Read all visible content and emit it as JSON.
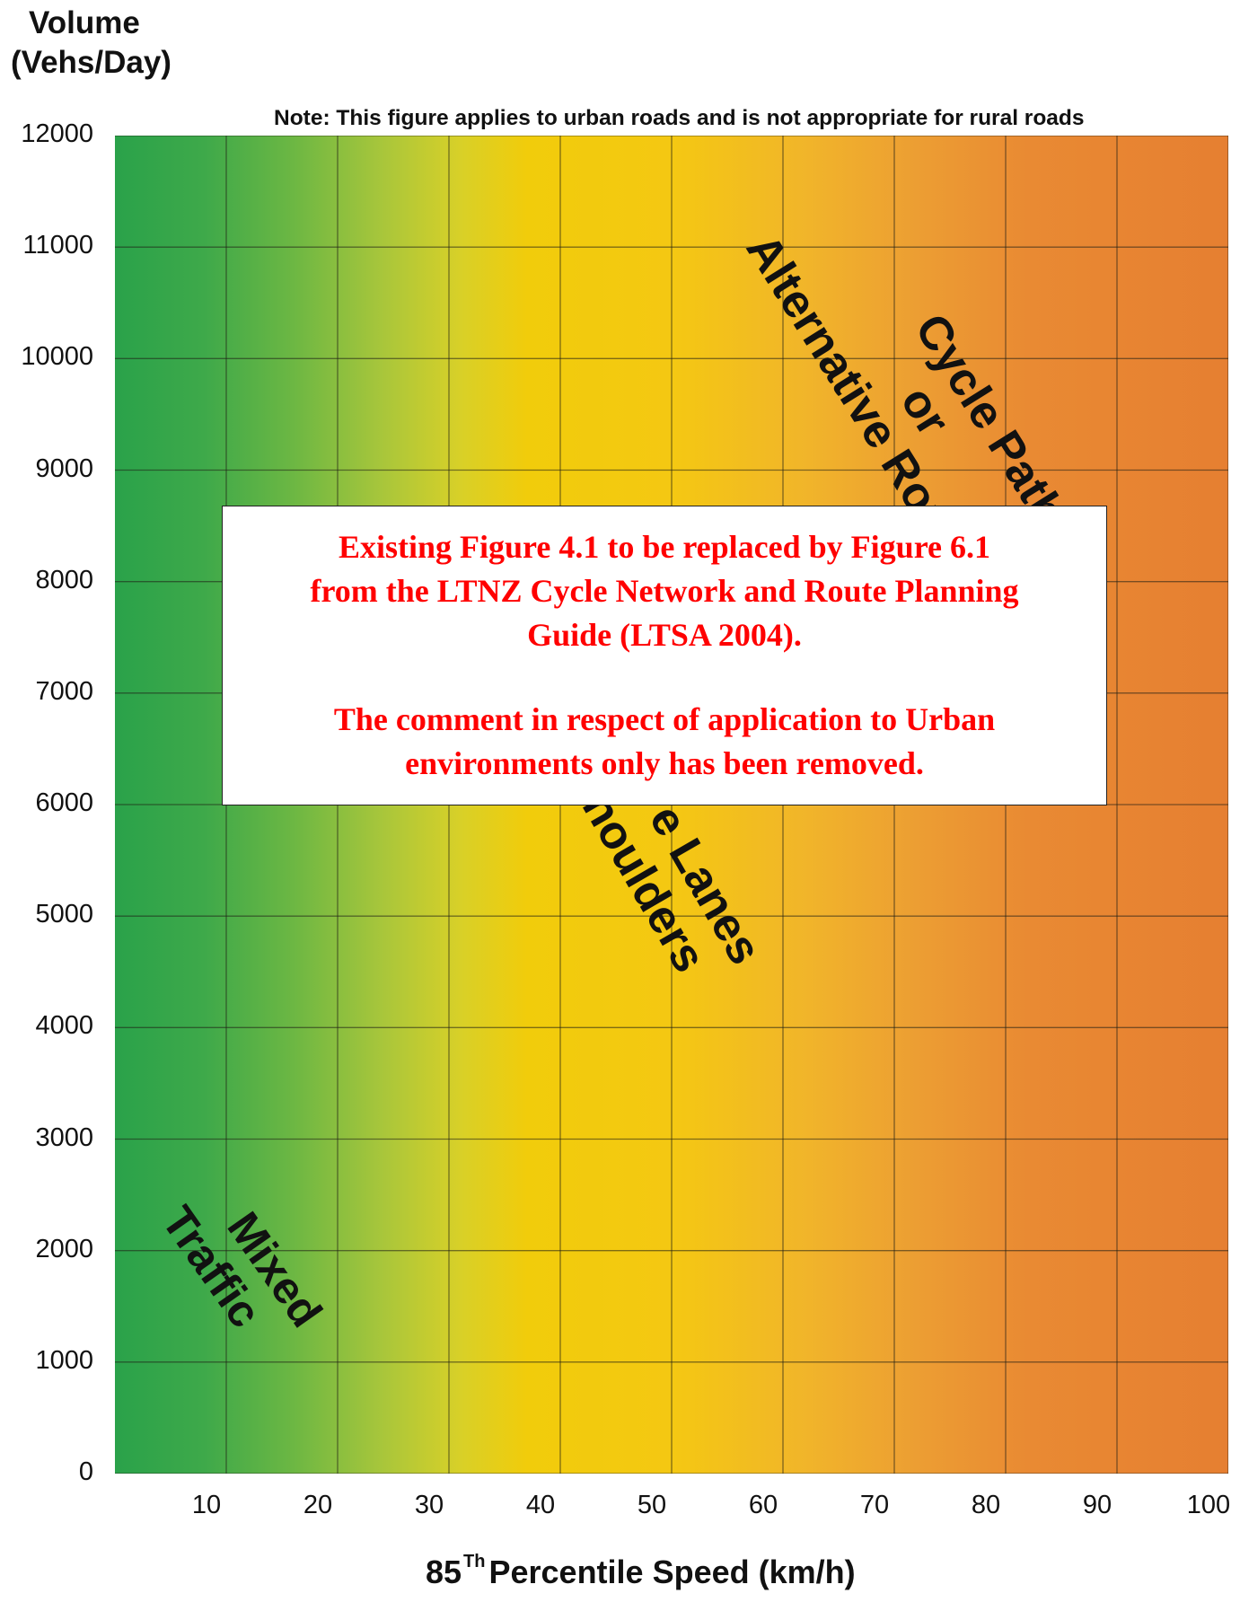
{
  "chart_data": {
    "type": "heatmap",
    "title": "",
    "note": "Note: This figure applies to urban roads and is not appropriate for rural roads",
    "ylabel_line1": "Volume",
    "ylabel_line2": "(Vehs/Day)",
    "xlabel_prefix": "85",
    "xlabel_superscript": "Th",
    "xlabel_suffix": "Percentile Speed (km/h)",
    "xlim": [
      0,
      100
    ],
    "ylim": [
      0,
      12000
    ],
    "x_ticks": [
      "10",
      "20",
      "30",
      "40",
      "50",
      "60",
      "70",
      "80",
      "90",
      "100"
    ],
    "y_ticks": [
      "0",
      "1000",
      "2000",
      "3000",
      "4000",
      "5000",
      "6000",
      "7000",
      "8000",
      "9000",
      "10000",
      "11000",
      "12000"
    ],
    "grid": true,
    "color_scale": [
      "#2aa24a",
      "#f1cc0b",
      "#e67f31"
    ],
    "regions": [
      {
        "lines": [
          "Mixed",
          "Traffic"
        ]
      },
      {
        "lines": [
          "Cycle Lanes",
          "or Shoulders"
        ],
        "visible_lines": [
          "e Lanes",
          "Shoulders"
        ]
      },
      {
        "lines": [
          "Cycle Paths",
          "or",
          "Alternative Route"
        ]
      }
    ]
  },
  "notice": {
    "line1": "Existing Figure 4.1 to be replaced by Figure 6.1",
    "line2": "from the LTNZ Cycle Network and Route Planning",
    "line3": "Guide (LTSA 2004).",
    "line4": "The comment in respect of application to Urban",
    "line5": "environments only has been removed."
  }
}
